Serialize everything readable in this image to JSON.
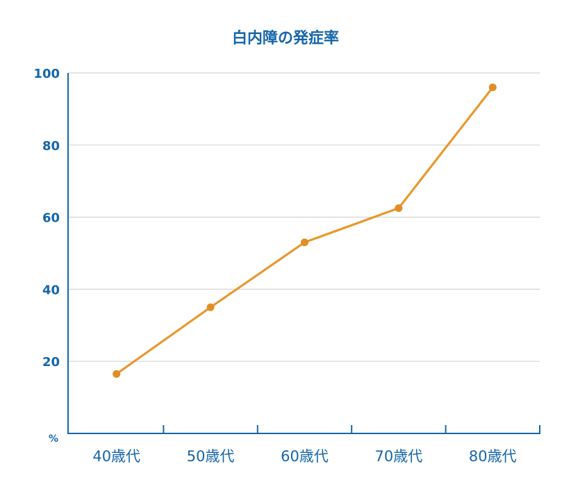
{
  "colors": {
    "accent": "#1565A8",
    "line": "#E8982E",
    "point": "#E08E28",
    "grid": "#D3D3D3",
    "axis": "#1565A8"
  },
  "chart_data": {
    "type": "line",
    "title": "白内障の発症率",
    "ylabel": "%",
    "xlabel": "",
    "categories": [
      "40歳代",
      "50歳代",
      "60歳代",
      "70歳代",
      "80歳代"
    ],
    "series": [
      {
        "values": [
          16.5,
          35,
          53,
          62.5,
          96
        ]
      }
    ],
    "ylim": [
      0,
      100
    ],
    "yticks": [
      20,
      40,
      60,
      80,
      100
    ],
    "grid": true,
    "legend": "none"
  }
}
